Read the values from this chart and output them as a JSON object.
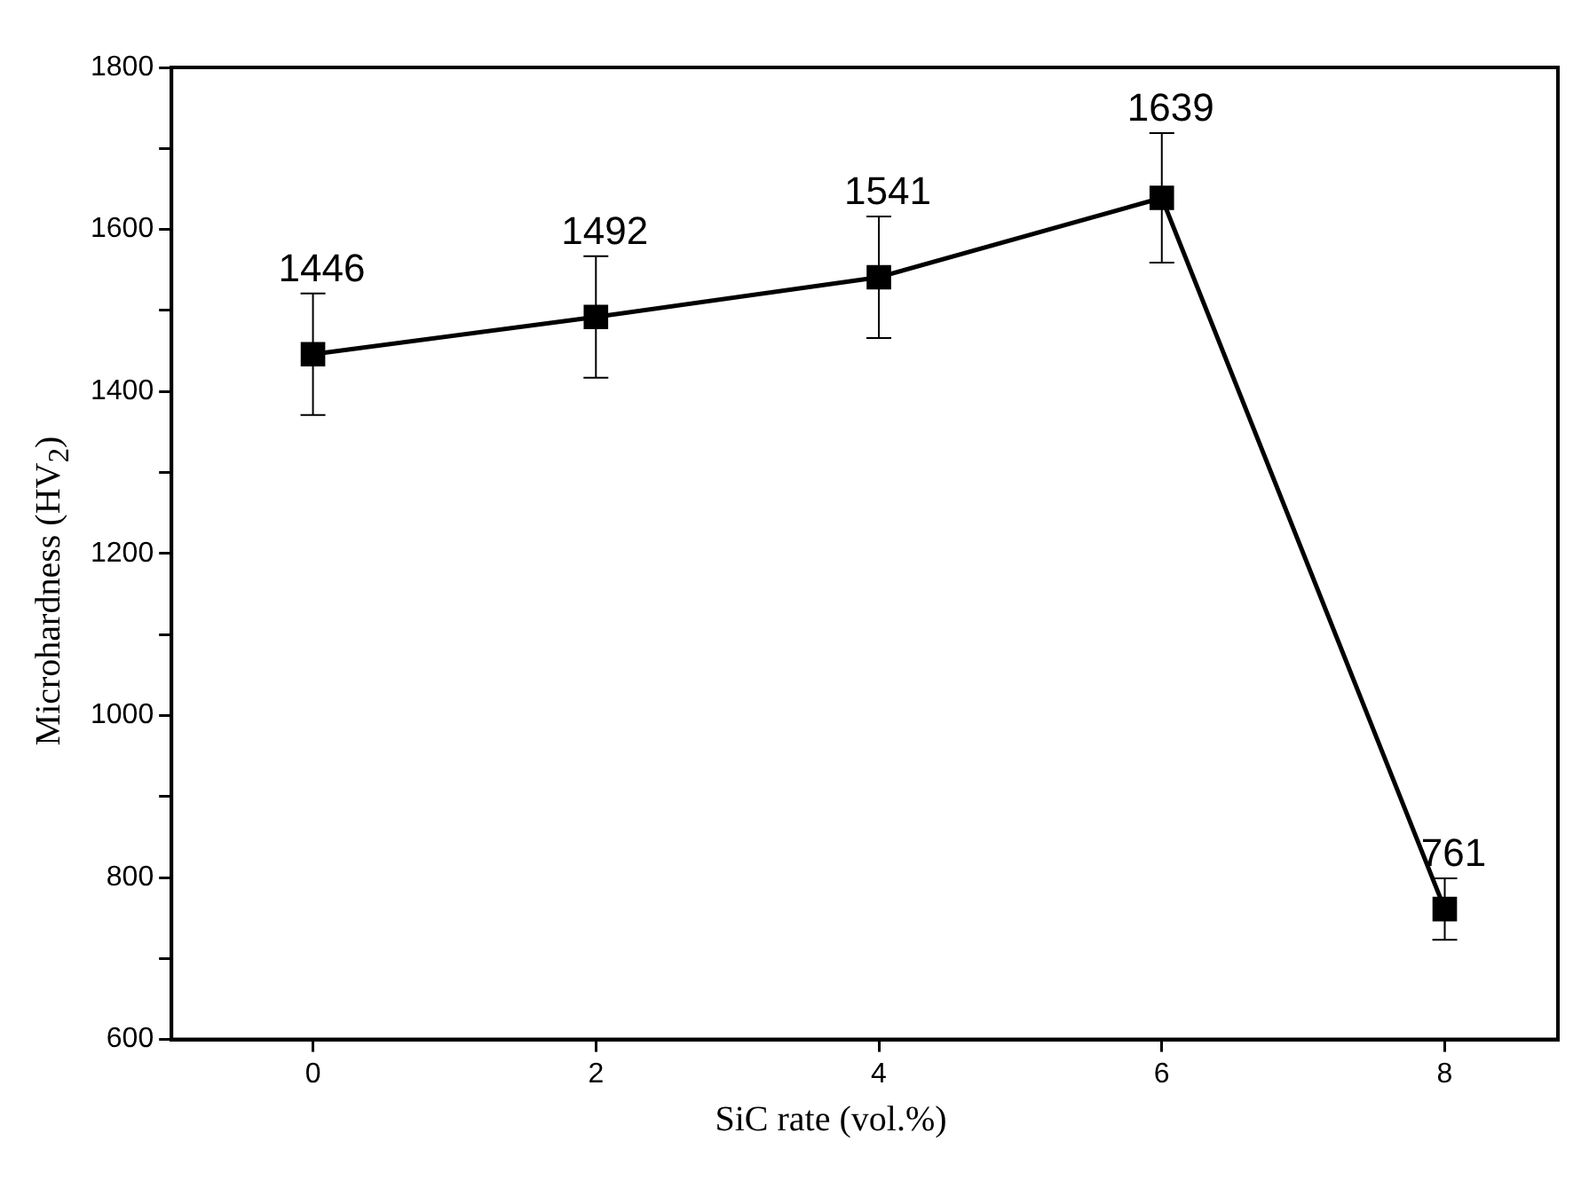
{
  "chart_data": {
    "type": "line",
    "xlabel": "SiC rate (vol.%)",
    "ylabel": "Microhardness (HV$_{2}$)",
    "x": [
      0,
      2,
      4,
      6,
      8
    ],
    "series": [
      {
        "color": "#000000",
        "values": [
          1446,
          1492,
          1541,
          1639,
          761
        ],
        "errors": [
          75,
          75,
          75,
          80,
          38
        ]
      }
    ],
    "xlim": [
      -1,
      8.8
    ],
    "xticks": [
      0,
      2,
      4,
      6,
      8
    ],
    "ylim": [
      600,
      1800
    ],
    "yticks": [
      600,
      {
        "value": 700,
        "label": null
      },
      800,
      {
        "value": 900,
        "label": null
      },
      1000,
      {
        "value": 1100,
        "label": null
      },
      1200,
      {
        "value": 1300,
        "label": null
      },
      1400,
      {
        "value": 1500,
        "label": null
      },
      1600,
      {
        "value": 1700,
        "label": null
      },
      1800
    ],
    "marker": "square",
    "line_style": "solid",
    "grid": false,
    "legend": false,
    "data_labels": true
  }
}
